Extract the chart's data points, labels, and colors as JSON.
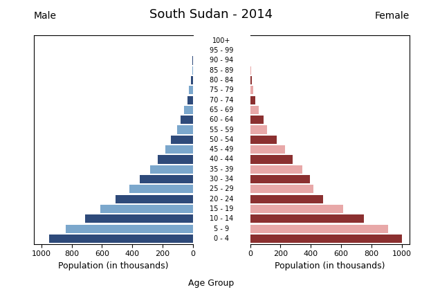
{
  "title": "South Sudan - 2014",
  "age_groups": [
    "0 - 4",
    "5 - 9",
    "10 - 14",
    "15 - 19",
    "20 - 24",
    "25 - 29",
    "30 - 34",
    "35 - 39",
    "40 - 44",
    "45 - 49",
    "50 - 54",
    "55 - 59",
    "60 - 64",
    "65 - 69",
    "70 - 74",
    "75 - 79",
    "80 - 84",
    "85 - 89",
    "90 - 94",
    "95 - 99",
    "100+"
  ],
  "male": [
    950,
    840,
    710,
    610,
    510,
    420,
    350,
    280,
    230,
    180,
    145,
    105,
    80,
    58,
    38,
    25,
    15,
    6,
    2,
    1,
    0
  ],
  "female": [
    1000,
    910,
    750,
    615,
    480,
    415,
    395,
    345,
    280,
    230,
    175,
    110,
    90,
    55,
    35,
    22,
    12,
    6,
    2,
    1,
    0
  ],
  "male_colors": [
    "#2E4A7A",
    "#7BA7CC",
    "#2E4A7A",
    "#7BA7CC",
    "#2E4A7A",
    "#7BA7CC",
    "#2E4A7A",
    "#7BA7CC",
    "#2E4A7A",
    "#7BA7CC",
    "#2E4A7A",
    "#7BA7CC",
    "#2E4A7A",
    "#7BA7CC",
    "#2E4A7A",
    "#7BA7CC",
    "#2E4A7A",
    "#7BA7CC",
    "#2E4A7A",
    "#7BA7CC",
    "#2E4A7A"
  ],
  "female_colors": [
    "#8B3030",
    "#E8A8A8",
    "#8B3030",
    "#E8A8A8",
    "#8B3030",
    "#E8A8A8",
    "#8B3030",
    "#E8A8A8",
    "#8B3030",
    "#E8A8A8",
    "#8B3030",
    "#E8A8A8",
    "#8B3030",
    "#E8A8A8",
    "#8B3030",
    "#E8A8A8",
    "#8B3030",
    "#E8A8A8",
    "#8B3030",
    "#E8A8A8",
    "#8B3030"
  ],
  "xlim": 1050,
  "xticks": [
    0,
    200,
    400,
    600,
    800,
    1000
  ],
  "xlabel_left": "Population (in thousands)",
  "xlabel_center": "Age Group",
  "xlabel_right": "Population (in thousands)",
  "label_male": "Male",
  "label_female": "Female",
  "background_color": "#ffffff",
  "title_fontsize": 13,
  "label_fontsize": 10,
  "tick_fontsize": 8,
  "age_label_fontsize": 7
}
